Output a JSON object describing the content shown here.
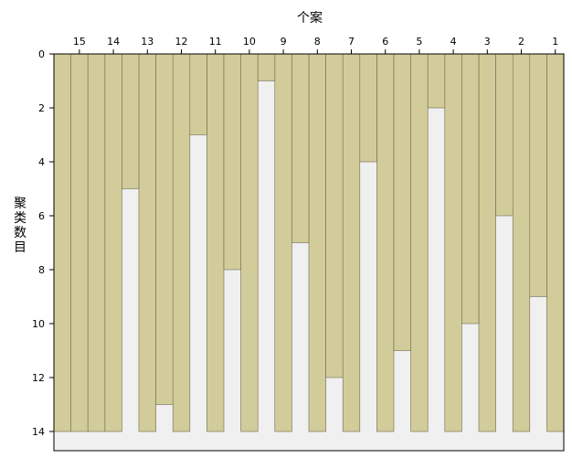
{
  "chart_data": {
    "type": "icicle",
    "title": "",
    "xlabel": "个案",
    "ylabel": "聚类数目",
    "cases": [
      "15",
      "14",
      "13",
      "12",
      "11",
      "10",
      "9",
      "8",
      "7",
      "6",
      "5",
      "4",
      "3",
      "2",
      "1"
    ],
    "gap_join_levels": [
      14,
      14,
      5,
      13,
      3,
      8,
      1,
      7,
      12,
      4,
      11,
      2,
      10,
      6,
      9
    ],
    "y_ticks": [
      0,
      2,
      4,
      6,
      8,
      10,
      12,
      14
    ],
    "ylim": [
      0,
      14
    ],
    "colors": {
      "bar": "#d2cc9a",
      "gap": "#f0f0f0",
      "background": "#ffffff",
      "frame": "#000000"
    }
  }
}
